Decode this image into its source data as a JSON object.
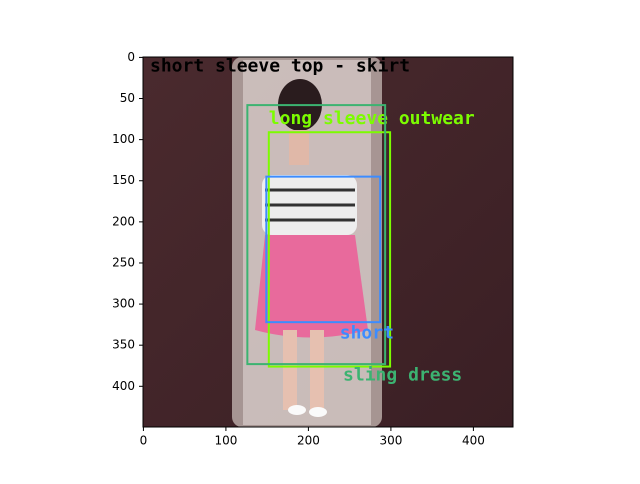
{
  "chart_data": {
    "type": "image",
    "xlim": [
      -0.5,
      448
    ],
    "ylim": [
      -0.5,
      449.5
    ],
    "y_inverted": true,
    "xticks": [
      0,
      100,
      200,
      300,
      400
    ],
    "yticks": [
      0,
      50,
      100,
      150,
      200,
      250,
      300,
      350,
      400
    ],
    "caption": {
      "text": "short sleeve top - skirt",
      "color": "#000000",
      "x": 8,
      "y": 11
    },
    "boxes": [
      {
        "label": "long sleeve outwear",
        "color": "#7cfc00",
        "x0": 152,
        "y0": 91,
        "x1": 299,
        "y1": 376,
        "label_x": 152,
        "label_y": 75
      },
      {
        "label": "sling dress",
        "color": "#3cb371",
        "x0": 126,
        "y0": 58,
        "x1": 293,
        "y1": 373,
        "label_x": 242,
        "label_y": 387
      },
      {
        "label": "short",
        "color": "#3c8cff",
        "x0": 149,
        "y0": 145,
        "x1": 287,
        "y1": 322,
        "label_x": 238,
        "label_y": 336
      }
    ]
  }
}
